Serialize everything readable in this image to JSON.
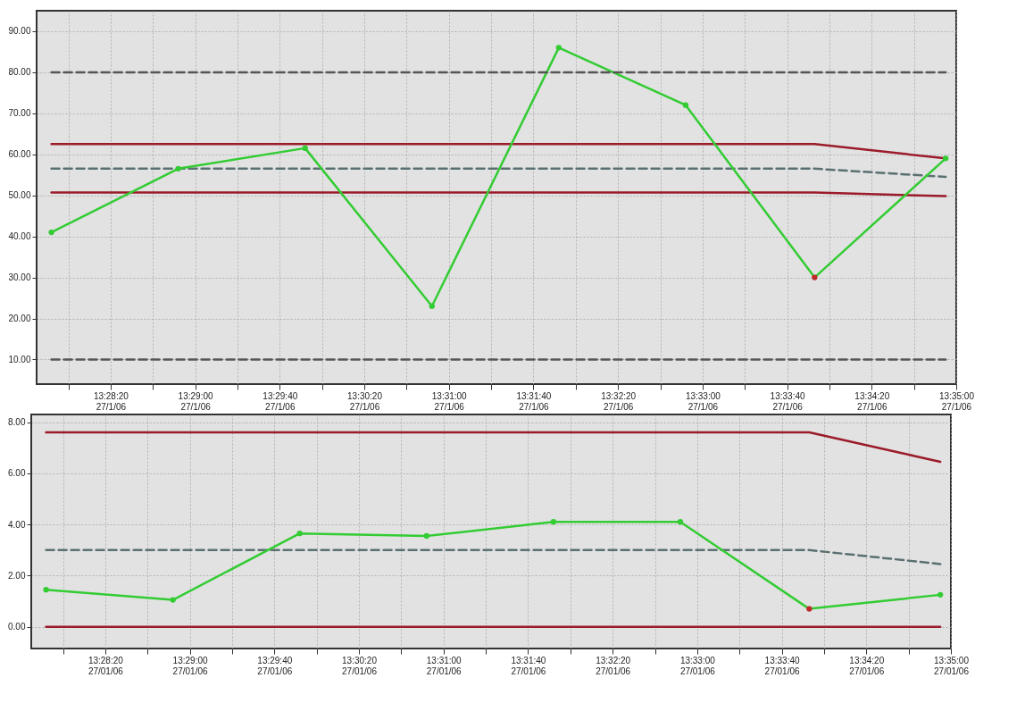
{
  "chart_data": [
    {
      "type": "line",
      "x": [
        "--01-27T13:27:52",
        "--01-27T13:28:52",
        "--01-27T13:29:52",
        "--01-27T13:30:52",
        "--01-27T13:31:52",
        "--01-27T13:32:52",
        "--01-27T13:33:53",
        "--01-27T13:34:55"
      ],
      "xlim": [
        "--01-27T13:27:45",
        "--01-27T13:35:00"
      ],
      "xticks": [
        {
          "value": "--01-27T13:28:00",
          "label": null
        },
        {
          "value": "--01-27T13:28:20",
          "label": "13:28:20\n27/1/06"
        },
        {
          "value": "--01-27T13:28:40",
          "label": null
        },
        {
          "value": "--01-27T13:29:00",
          "label": "13:29:00\n27/1/06"
        },
        {
          "value": "--01-27T13:29:20",
          "label": null
        },
        {
          "value": "--01-27T13:29:40",
          "label": "13:29:40\n27/1/06"
        },
        {
          "value": "--01-27T13:30:00",
          "label": null
        },
        {
          "value": "--01-27T13:30:20",
          "label": "13:30:20\n27/1/06"
        },
        {
          "value": "--01-27T13:30:40",
          "label": null
        },
        {
          "value": "--01-27T13:31:00",
          "label": "13:31:00\n27/1/06"
        },
        {
          "value": "--01-27T13:31:20",
          "label": null
        },
        {
          "value": "--01-27T13:31:40",
          "label": "13:31:40\n27/1/06"
        },
        {
          "value": "--01-27T13:32:00",
          "label": null
        },
        {
          "value": "--01-27T13:32:20",
          "label": "13:32:20\n27/1/06"
        },
        {
          "value": "--01-27T13:32:40",
          "label": null
        },
        {
          "value": "--01-27T13:33:00",
          "label": "13:33:00\n27/1/06"
        },
        {
          "value": "--01-27T13:33:20",
          "label": null
        },
        {
          "value": "--01-27T13:33:40",
          "label": "13:33:40\n27/1/06"
        },
        {
          "value": "--01-27T13:34:00",
          "label": null
        },
        {
          "value": "--01-27T13:34:20",
          "label": "13:34:20\n27/1/06"
        },
        {
          "value": "--01-27T13:34:40",
          "label": null
        },
        {
          "value": "--01-27T13:35:00",
          "label": "13:35:00\n27/1/06"
        }
      ],
      "ylim": [
        4,
        95
      ],
      "yticks": [
        {
          "value": 10,
          "label": "10.00"
        },
        {
          "value": 20,
          "label": "20.00"
        },
        {
          "value": 30,
          "label": "30.00"
        },
        {
          "value": 40,
          "label": "40.00"
        },
        {
          "value": 50,
          "label": "50.00"
        },
        {
          "value": 60,
          "label": "60.00"
        },
        {
          "value": 70,
          "label": "70.00"
        },
        {
          "value": 80,
          "label": "80.00"
        },
        {
          "value": 90,
          "label": "90.00"
        }
      ],
      "grid": true,
      "series": [
        {
          "color": "#9b1b2a",
          "line_style": "solid",
          "x": [
            "--01-27T13:27:52",
            "--01-27T13:33:53",
            "--01-27T13:34:55"
          ],
          "values": [
            62.5,
            62.5,
            59
          ]
        },
        {
          "color": "#5a7070",
          "line_style": "dashed",
          "x": [
            "--01-27T13:27:52",
            "--01-27T13:33:53",
            "--01-27T13:34:55"
          ],
          "values": [
            56.5,
            56.5,
            54.5
          ]
        },
        {
          "color": "#9b1b2a",
          "line_style": "solid",
          "x": [
            "--01-27T13:27:52",
            "--01-27T13:33:53",
            "--01-27T13:34:55"
          ],
          "values": [
            50.7,
            50.7,
            49.8
          ]
        },
        {
          "color": "#33cc33",
          "line_style": "solid",
          "marker": "circle",
          "colors": [
            "#33cc33",
            "#33cc33",
            "#33cc33",
            "#33cc33",
            "#33cc33",
            "#33cc33",
            "#c0282a",
            "#33cc33"
          ],
          "values": [
            41,
            56.5,
            61.5,
            23,
            86,
            72,
            30,
            59
          ]
        },
        {
          "color": "#555555",
          "line_style": "dashed",
          "x": [
            "--01-27T13:27:52",
            "--01-27T13:34:55"
          ],
          "values": [
            80,
            80
          ]
        },
        {
          "color": "#555555",
          "line_style": "dashed",
          "x": [
            "--01-27T13:27:52",
            "--01-27T13:34:55"
          ],
          "values": [
            10,
            10
          ]
        }
      ]
    },
    {
      "type": "line",
      "x": [
        "--01-27T13:27:52",
        "--01-27T13:28:52",
        "--01-27T13:29:52",
        "--01-27T13:30:52",
        "--01-27T13:31:52",
        "--01-27T13:32:52",
        "--01-27T13:33:53",
        "--01-27T13:34:55"
      ],
      "xlim": [
        "--01-27T13:27:45",
        "--01-27T13:35:00"
      ],
      "xticks": [
        {
          "value": "--01-27T13:28:00",
          "label": null
        },
        {
          "value": "--01-27T13:28:20",
          "label": "13:28:20\n27/01/06"
        },
        {
          "value": "--01-27T13:28:40",
          "label": null
        },
        {
          "value": "--01-27T13:29:00",
          "label": "13:29:00\n27/01/06"
        },
        {
          "value": "--01-27T13:29:20",
          "label": null
        },
        {
          "value": "--01-27T13:29:40",
          "label": "13:29:40\n27/01/06"
        },
        {
          "value": "--01-27T13:30:00",
          "label": null
        },
        {
          "value": "--01-27T13:30:20",
          "label": "13:30:20\n27/01/06"
        },
        {
          "value": "--01-27T13:30:40",
          "label": null
        },
        {
          "value": "--01-27T13:31:00",
          "label": "13:31:00\n27/01/06"
        },
        {
          "value": "--01-27T13:31:20",
          "label": null
        },
        {
          "value": "--01-27T13:31:40",
          "label": "13:31:40\n27/01/06"
        },
        {
          "value": "--01-27T13:32:00",
          "label": null
        },
        {
          "value": "--01-27T13:32:20",
          "label": "13:32:20\n27/01/06"
        },
        {
          "value": "--01-27T13:32:40",
          "label": null
        },
        {
          "value": "--01-27T13:33:00",
          "label": "13:33:00\n27/01/06"
        },
        {
          "value": "--01-27T13:33:20",
          "label": null
        },
        {
          "value": "--01-27T13:33:40",
          "label": "13:33:40\n27/01/06"
        },
        {
          "value": "--01-27T13:34:00",
          "label": null
        },
        {
          "value": "--01-27T13:34:20",
          "label": "13:34:20\n27/01/06"
        },
        {
          "value": "--01-27T13:34:40",
          "label": null
        },
        {
          "value": "--01-27T13:35:00",
          "label": "13:35:00\n27/01/06"
        }
      ],
      "ylim": [
        -0.85,
        8.3
      ],
      "yticks": [
        {
          "value": 0,
          "label": "0.00"
        },
        {
          "value": 2,
          "label": "2.00"
        },
        {
          "value": 4,
          "label": "4.00"
        },
        {
          "value": 6,
          "label": "6.00"
        },
        {
          "value": 8,
          "label": "8.00"
        }
      ],
      "grid": true,
      "series": [
        {
          "color": "#9b1b2a",
          "line_style": "solid",
          "x": [
            "--01-27T13:27:52",
            "--01-27T13:33:53",
            "--01-27T13:34:55"
          ],
          "values": [
            7.6,
            7.6,
            6.45
          ]
        },
        {
          "color": "#5a7070",
          "line_style": "dashed",
          "x": [
            "--01-27T13:27:52",
            "--01-27T13:33:53",
            "--01-27T13:34:55"
          ],
          "values": [
            3,
            3,
            2.45
          ]
        },
        {
          "color": "#9b1b2a",
          "line_style": "solid",
          "x": [
            "--01-27T13:27:52",
            "--01-27T13:34:55"
          ],
          "values": [
            0,
            0
          ]
        },
        {
          "color": "#33cc33",
          "line_style": "solid",
          "marker": "circle",
          "colors": [
            "#33cc33",
            "#33cc33",
            "#33cc33",
            "#33cc33",
            "#33cc33",
            "#33cc33",
            "#c0282a",
            "#33cc33"
          ],
          "values": [
            1.45,
            1.05,
            3.65,
            3.55,
            4.1,
            4.1,
            0.7,
            1.25
          ]
        }
      ]
    }
  ]
}
